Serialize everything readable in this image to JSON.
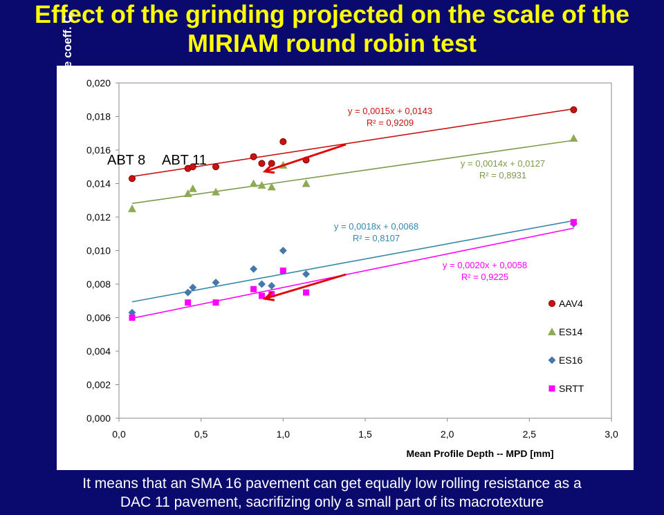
{
  "title": {
    "line1": "Effect of the grinding projected on the scale of the",
    "line2": "MIRIAM round robin test"
  },
  "footer": {
    "line1": "It means that an SMA 16 pavement can get equally low rolling resistance as a",
    "line2": "DAC 11 pavement, sacrifizing only a small part of its macrotexture"
  },
  "chart_data": {
    "type": "scatter",
    "xlabel": "Mean Profile Depth -- MPD [mm]",
    "ylabel": "Rolling resistance coeff. C",
    "ylabel_sub": "r",
    "xlim": [
      0,
      3.0
    ],
    "ylim": [
      0,
      0.02
    ],
    "x_ticks": [
      "0,0",
      "0,5",
      "1,0",
      "1,5",
      "2,0",
      "2,5",
      "3,0"
    ],
    "y_ticks": [
      "0,000",
      "0,002",
      "0,004",
      "0,006",
      "0,008",
      "0,010",
      "0,012",
      "0,014",
      "0,016",
      "0,018",
      "0,020"
    ],
    "grid": false,
    "legend_position": "right",
    "annotations": [
      "ABT 8",
      "ABT 11"
    ],
    "series": [
      {
        "name": "AAV4",
        "marker": "circle",
        "color": "#cc1111",
        "line_color": "#cc1111",
        "trend": {
          "slope": 0.0015,
          "intercept": 0.0143
        },
        "equation": "y = 0,0015x + 0,0143",
        "r2": "R² = 0,9209",
        "points": [
          [
            0.08,
            0.0143
          ],
          [
            0.42,
            0.0149
          ],
          [
            0.45,
            0.015
          ],
          [
            0.59,
            0.015
          ],
          [
            0.82,
            0.0156
          ],
          [
            0.87,
            0.0152
          ],
          [
            0.93,
            0.0152
          ],
          [
            1.0,
            0.0165
          ],
          [
            1.14,
            0.0154
          ],
          [
            2.77,
            0.0184
          ]
        ]
      },
      {
        "name": "ES14",
        "marker": "triangle",
        "color": "#8faa55",
        "line_color": "#7a9a4a",
        "trend": {
          "slope": 0.0014,
          "intercept": 0.0127
        },
        "equation": "y = 0,0014x + 0,0127",
        "r2": "R² = 0,8931",
        "points": [
          [
            0.08,
            0.0125
          ],
          [
            0.42,
            0.0134
          ],
          [
            0.45,
            0.0137
          ],
          [
            0.59,
            0.0135
          ],
          [
            0.82,
            0.014
          ],
          [
            0.87,
            0.0139
          ],
          [
            0.93,
            0.0138
          ],
          [
            1.0,
            0.0151
          ],
          [
            1.14,
            0.014
          ],
          [
            2.77,
            0.0167
          ]
        ]
      },
      {
        "name": "ES16",
        "marker": "diamond",
        "color": "#4477aa",
        "line_color": "#3388aa",
        "trend": {
          "slope": 0.0018,
          "intercept": 0.0068
        },
        "equation": "y = 0,0018x + 0,0068",
        "r2": "R² = 0,8107",
        "points": [
          [
            0.08,
            0.0063
          ],
          [
            0.42,
            0.0075
          ],
          [
            0.45,
            0.0078
          ],
          [
            0.59,
            0.0081
          ],
          [
            0.82,
            0.0089
          ],
          [
            0.87,
            0.008
          ],
          [
            0.93,
            0.0079
          ],
          [
            1.0,
            0.01
          ],
          [
            1.14,
            0.0086
          ],
          [
            2.77,
            0.0116
          ]
        ]
      },
      {
        "name": "SRTT",
        "marker": "square",
        "color": "#ff00ff",
        "line_color": "#ff00ff",
        "trend": {
          "slope": 0.002,
          "intercept": 0.0058
        },
        "equation": "y = 0,0020x + 0,0058",
        "r2": "R² = 0,9225",
        "points": [
          [
            0.08,
            0.006
          ],
          [
            0.42,
            0.0069
          ],
          [
            0.59,
            0.0069
          ],
          [
            0.82,
            0.0077
          ],
          [
            0.87,
            0.0073
          ],
          [
            0.93,
            0.0074
          ],
          [
            1.0,
            0.0088
          ],
          [
            1.14,
            0.0075
          ],
          [
            2.77,
            0.0117
          ]
        ]
      }
    ]
  }
}
